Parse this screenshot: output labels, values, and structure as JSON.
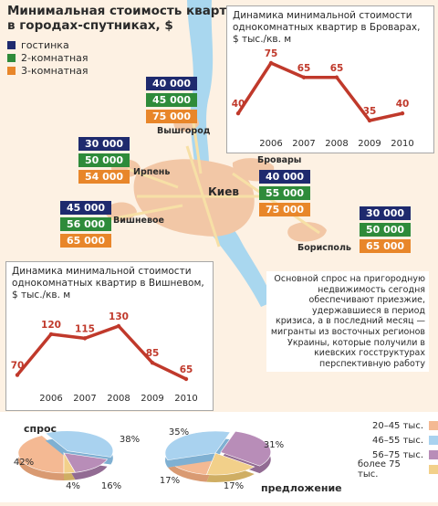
{
  "title": "Минимальная стоимость квартир в городах-спутниках, $",
  "legend": [
    {
      "label": "гостинка",
      "color": "#1e2a6e"
    },
    {
      "label": "2-комнатная",
      "color": "#2e8b3a"
    },
    {
      "label": "3-комнатная",
      "color": "#e8862a"
    }
  ],
  "cities": {
    "vyshhorod": {
      "name": "Вышгород",
      "prices": [
        "40 000",
        "45 000",
        "75 000"
      ]
    },
    "irpin": {
      "name": "Ирпень",
      "prices": [
        "30 000",
        "50 000",
        "54 000"
      ]
    },
    "vyshneve": {
      "name": "Вишневое",
      "prices": [
        "45 000",
        "56 000",
        "65 000"
      ]
    },
    "brovary": {
      "name": "Бровары",
      "prices": [
        "40 000",
        "55 000",
        "75 000"
      ]
    },
    "boryspil": {
      "name": "Борисполь",
      "prices": [
        "30 000",
        "50 000",
        "65 000"
      ]
    },
    "kyiv": {
      "name": "Киев"
    }
  },
  "chart_data": [
    {
      "type": "line",
      "title": "Динамика минимальной стоимости однокомнатных квартир в Броварах, $ тыс./кв. м",
      "x": [
        "",
        "2006",
        "2007",
        "2008",
        "2009",
        "2010"
      ],
      "values": [
        40,
        75,
        65,
        65,
        35,
        40
      ],
      "data_labels": [
        "40",
        "75",
        "65",
        "65",
        "35",
        "40"
      ]
    },
    {
      "type": "line",
      "title": "Динамика минимальной стоимости однокомнатных квартир в Вишневом, $ тыс./кв. м",
      "x": [
        "",
        "2006",
        "2007",
        "2008",
        "2009",
        "2010"
      ],
      "values": [
        70,
        120,
        115,
        130,
        85,
        65
      ],
      "data_labels": [
        "70",
        "120",
        "115",
        "130",
        "85",
        "65"
      ]
    },
    {
      "type": "pie",
      "title": "спрос",
      "categories": [
        "20–45 тыс.",
        "46–55 тыс.",
        "56–75 тыс.",
        "более 75 тыс."
      ],
      "values": [
        42,
        38,
        16,
        4
      ],
      "labels": [
        "42%",
        "38%",
        "16%",
        "4%"
      ]
    },
    {
      "type": "pie",
      "title": "предложение",
      "categories": [
        "20–45 тыс.",
        "46–55 тыс.",
        "56–75 тыс.",
        "более 75 тыс."
      ],
      "values": [
        17,
        35,
        31,
        17
      ],
      "labels": [
        "17%",
        "35%",
        "31%",
        "17%"
      ]
    }
  ],
  "pie_legend": [
    {
      "label": "20–45 тыс.",
      "color": "#f4b993"
    },
    {
      "label": "46–55 тыс.",
      "color": "#a9d2ef"
    },
    {
      "label": "56–75 тыс.",
      "color": "#b88db8"
    },
    {
      "label": "более 75 тыс.",
      "color": "#f2d08a"
    }
  ],
  "note": "Основной спрос на пригородную недвижимость сегодня обеспечивают приезжие, удержавшиеся в период кризиса, а в последний месяц — мигранты из восточных регионов Украины, которые получили в киевских госструктурах перспективную работу"
}
